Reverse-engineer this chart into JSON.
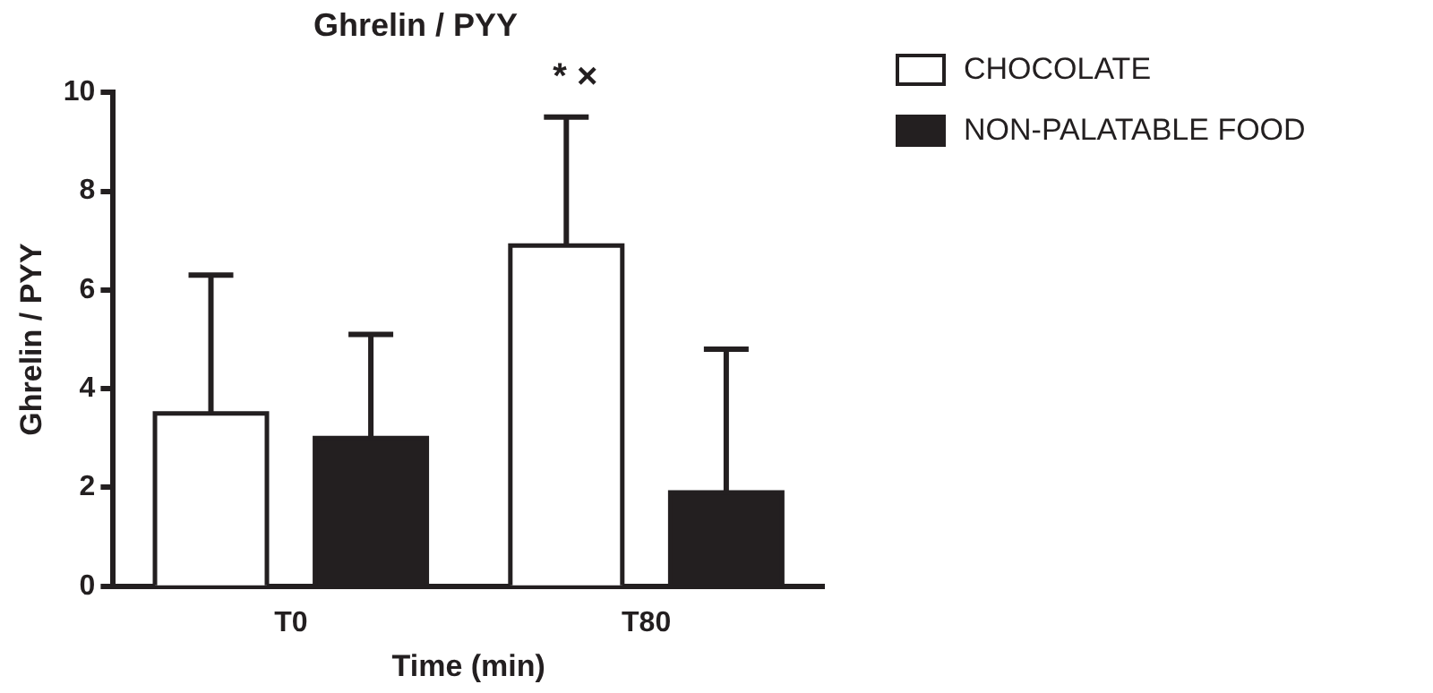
{
  "chart_data": {
    "type": "bar",
    "title": "Ghrelin / PYY",
    "xlabel": "Time (min)",
    "ylabel": "Ghrelin / PYY",
    "categories": [
      "T0",
      "T80"
    ],
    "series": [
      {
        "name": "CHOCOLATE",
        "color": "#ffffff",
        "values": [
          3.5,
          6.9
        ],
        "errors": [
          [
            3.5,
            6.3
          ],
          [
            6.9,
            9.5
          ]
        ]
      },
      {
        "name": "NON-PALATABLE FOOD",
        "color": "#231f20",
        "values": [
          3.0,
          1.9
        ],
        "errors": [
          [
            3.0,
            5.1
          ],
          [
            1.9,
            4.8
          ]
        ]
      }
    ],
    "ylim": [
      0,
      10
    ],
    "yticks": [
      0,
      2,
      4,
      6,
      8,
      10
    ],
    "grid": false,
    "legend": "top right",
    "annotations": [
      "* ×"
    ]
  }
}
